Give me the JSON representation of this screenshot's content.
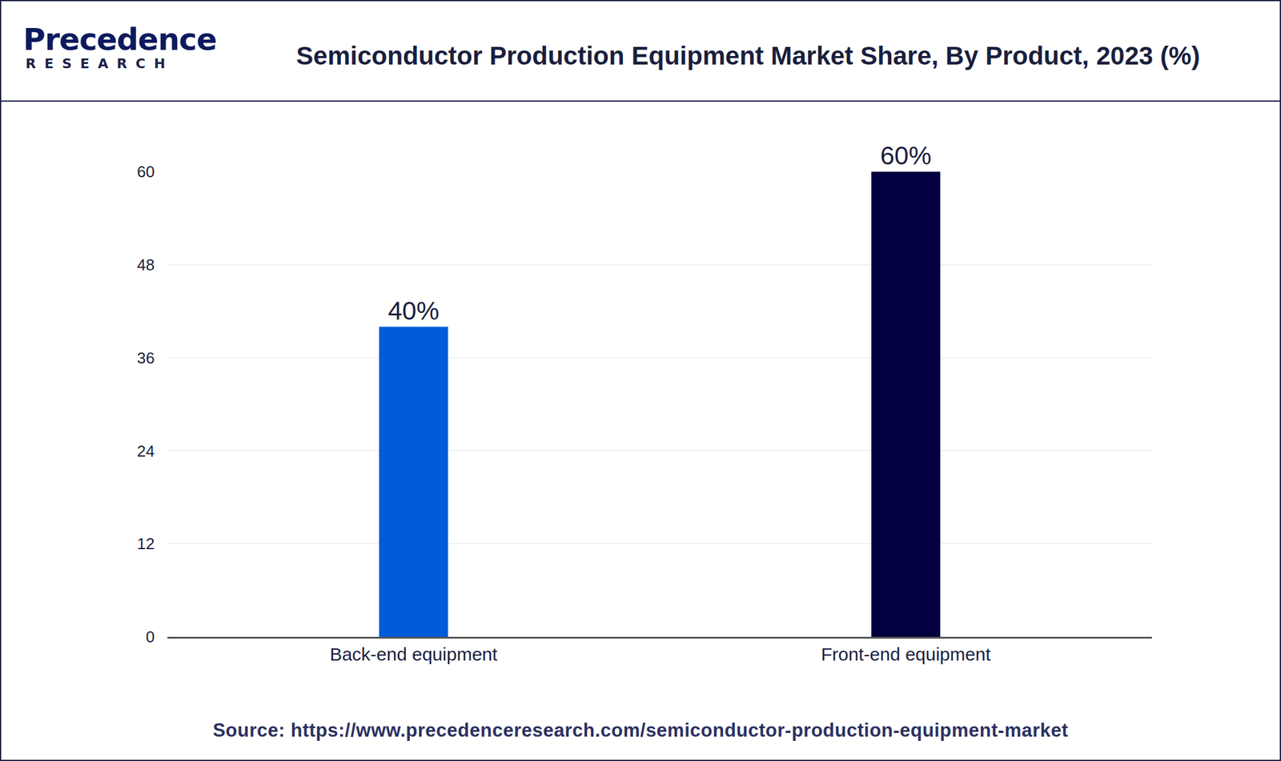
{
  "chart_data": {
    "type": "bar",
    "title": "Semiconductor Production Equipment Market Share, By Product, 2023 (%)",
    "categories": [
      "Back-end equipment",
      "Front-end equipment"
    ],
    "values": [
      40,
      60
    ],
    "value_labels": [
      "40%",
      "60%"
    ],
    "colors": [
      "#005bd9",
      "#03003f"
    ],
    "ylim": [
      0,
      60
    ],
    "yticks": [
      0,
      12,
      24,
      36,
      48,
      60
    ],
    "grid": true,
    "data_labels": true,
    "annotations": [
      "Precedence",
      "RESEARCH",
      "Source: https://www.precedenceresearch.com/semiconductor-production-equipment-market"
    ]
  }
}
